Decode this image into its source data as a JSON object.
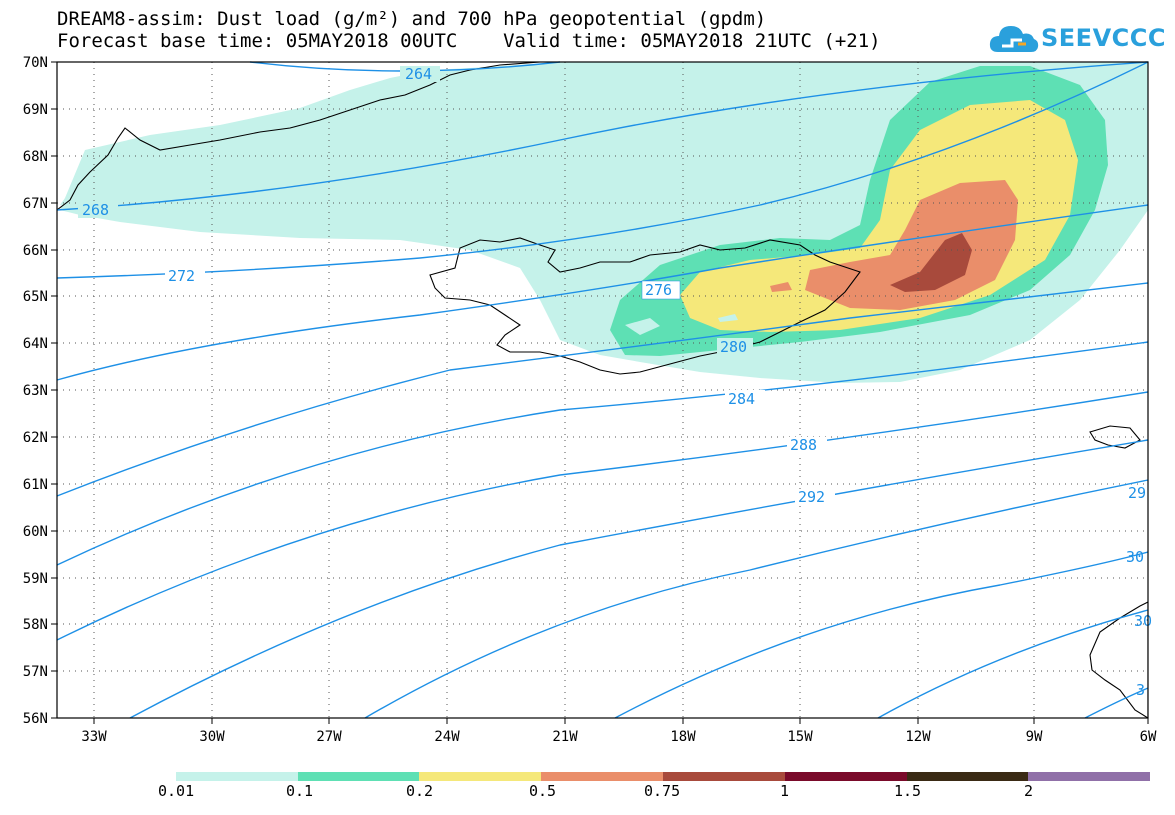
{
  "header": {
    "title_line1": "DREAM8-assim: Dust load (g/m²) and 700 hPa geopotential (gpdm)",
    "title_line2": "Forecast base time: 05MAY2018 00UTC    Valid time: 05MAY2018 21UTC (+21)",
    "logo_text": "SEEVCCC"
  },
  "map": {
    "lat_labels": [
      "70N",
      "69N",
      "68N",
      "67N",
      "66N",
      "65N",
      "64N",
      "63N",
      "62N",
      "61N",
      "60N",
      "59N",
      "58N",
      "57N",
      "56N"
    ],
    "lon_labels": [
      "33W",
      "30W",
      "27W",
      "24W",
      "21W",
      "18W",
      "15W",
      "12W",
      "9W",
      "6W"
    ],
    "contour_labels": [
      "264",
      "268",
      "272",
      "276",
      "280",
      "284",
      "288",
      "292",
      "29",
      "30",
      "30",
      "3"
    ],
    "colors": {
      "contour": "#1e90e6",
      "coast": "#000000",
      "dust_0_01": "#c5f2ea",
      "dust_0_1": "#5ee0b4",
      "dust_0_2": "#f5e87a",
      "dust_0_5": "#ea8e6a",
      "dust_0_75": "#a84a3c"
    }
  },
  "legend": {
    "labels": [
      "0.01",
      "0.1",
      "0.2",
      "0.5",
      "0.75",
      "1",
      "1.5",
      "2"
    ],
    "colors": [
      "#c5f2ea",
      "#5ee0b4",
      "#f5e87a",
      "#ea8e6a",
      "#a84a3c",
      "#7a0a2a",
      "#3a2a14",
      "#9070a8"
    ]
  }
}
